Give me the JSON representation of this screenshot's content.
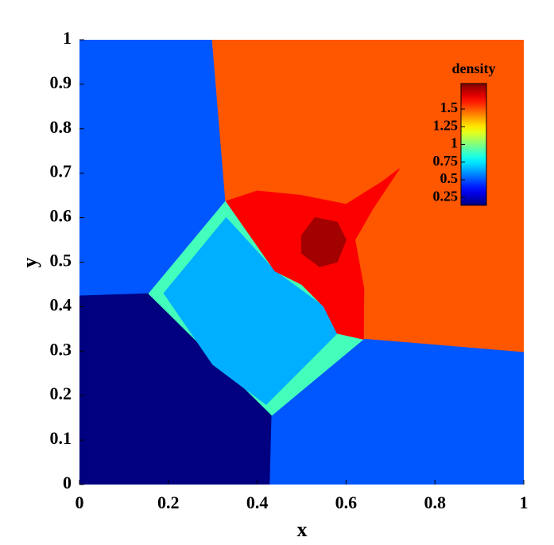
{
  "chart_data": {
    "type": "contour",
    "colormap": "jet",
    "xlabel": "x",
    "ylabel": "y",
    "xlim": [
      0,
      1
    ],
    "ylim": [
      0,
      1
    ],
    "xticks": [
      0,
      0.2,
      0.4,
      0.6,
      0.8,
      1
    ],
    "yticks": [
      0,
      0.1,
      0.2,
      0.3,
      0.4,
      0.5,
      0.6,
      0.7,
      0.8,
      0.9,
      1
    ],
    "colorbar": {
      "title": "density",
      "lim": [
        0.14,
        1.86
      ],
      "ticks": [
        0.25,
        0.5,
        0.75,
        1,
        1.25,
        1.5
      ]
    },
    "regions": [
      {
        "x": [
          0,
          0,
          0.299,
          0.329,
          0.156
        ],
        "y": [
          0.424,
          1,
          1,
          0.637,
          0.429
        ],
        "value": 0.5
      },
      {
        "x": [
          0.299,
          1,
          1,
          0.639,
          0.329
        ],
        "y": [
          1,
          1,
          0.297,
          0.327,
          0.637
        ],
        "value": 1.5
      },
      {
        "x": [
          0,
          0.429,
          0.433,
          0.156,
          0
        ],
        "y": [
          0,
          0,
          0.156,
          0.429,
          0.424
        ],
        "value": 0.14
      },
      {
        "x": [
          0.429,
          1,
          1,
          0.639,
          0.433
        ],
        "y": [
          0,
          0,
          0.297,
          0.327,
          0.156
        ],
        "value": 0.5
      },
      {
        "x": [
          0.156,
          0.329,
          0.639,
          0.433
        ],
        "y": [
          0.429,
          0.637,
          0.327,
          0.156
        ],
        "value": 0.9
      },
      {
        "x": [
          0.19,
          0.33,
          0.44,
          0.55,
          0.58,
          0.42,
          0.3
        ],
        "y": [
          0.43,
          0.6,
          0.48,
          0.4,
          0.34,
          0.18,
          0.27
        ],
        "value": 0.65
      },
      {
        "x": [
          0.33,
          0.4,
          0.5,
          0.6,
          0.68,
          0.72,
          0.66,
          0.62,
          0.64,
          0.639,
          0.58,
          0.55,
          0.5,
          0.44
        ],
        "y": [
          0.637,
          0.66,
          0.65,
          0.63,
          0.68,
          0.71,
          0.62,
          0.55,
          0.44,
          0.327,
          0.34,
          0.4,
          0.45,
          0.48
        ],
        "value": 1.65
      },
      {
        "x": [
          0.5,
          0.53,
          0.58,
          0.6,
          0.58,
          0.54,
          0.5
        ],
        "y": [
          0.56,
          0.6,
          0.59,
          0.55,
          0.5,
          0.49,
          0.52
        ],
        "value": 1.8
      }
    ]
  }
}
